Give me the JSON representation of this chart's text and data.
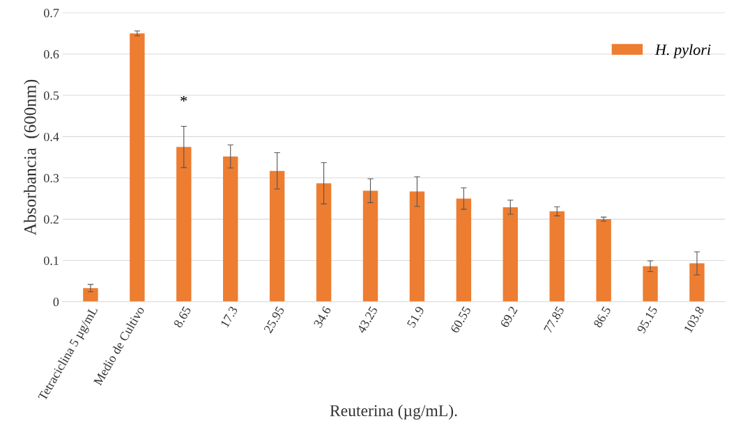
{
  "chart_data": {
    "type": "bar",
    "xlabel": "Reuterina (µg/mL).",
    "ylabel": "Absorbancia  (600nm)",
    "categories": [
      "Tetraciclina 5 µg/mL",
      "Medio de Cultivo",
      "8.65",
      "17.3",
      "25.95",
      "34.6",
      "43.25",
      "51.9",
      "60.55",
      "69.2",
      "77.85",
      "86.5",
      "95.15",
      "103.8"
    ],
    "series": [
      {
        "name": "H. pylori",
        "color": "#ed7d31",
        "values": [
          0.033,
          0.65,
          0.375,
          0.352,
          0.317,
          0.287,
          0.269,
          0.267,
          0.25,
          0.229,
          0.219,
          0.2,
          0.086,
          0.093
        ],
        "errors": [
          0.009,
          0.006,
          0.05,
          0.028,
          0.044,
          0.05,
          0.029,
          0.036,
          0.026,
          0.017,
          0.011,
          0.005,
          0.013,
          0.028
        ]
      }
    ],
    "annotations": [
      "*"
    ],
    "ylim": [
      0,
      0.7
    ],
    "yticks": [
      0,
      0.1,
      0.2,
      0.3,
      0.4,
      0.5,
      0.6,
      0.7
    ],
    "grid": "y",
    "legend": "top right"
  }
}
